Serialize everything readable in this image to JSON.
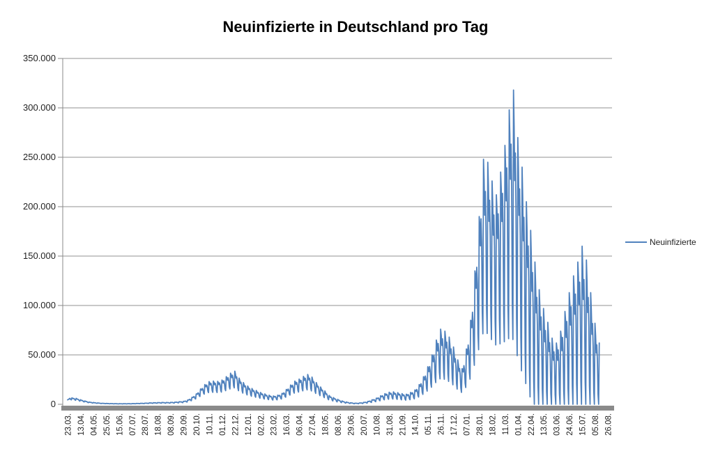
{
  "chart_data": {
    "type": "line",
    "title": "Neuinfizierte in Deutschland pro Tag",
    "legend": {
      "label": "Neuinfizierte",
      "position": "right"
    },
    "grid": "on",
    "line_color": "#4F81BD",
    "grid_color": "#909090",
    "axis_color": "#8a8a8a",
    "axis_bar_color": "#8a8a8a",
    "text_color": "#1f1f1f",
    "ylim": [
      0,
      350000
    ],
    "y_tick_step": 50000,
    "y_tick_labels": [
      "0",
      "50.000",
      "100.000",
      "150.000",
      "200.000",
      "250.000",
      "300.000",
      "350.000"
    ],
    "x_tick_labels": [
      "23.03.",
      "13.04.",
      "04.05.",
      "25.05.",
      "15.06.",
      "07.07.",
      "28.07.",
      "18.08.",
      "08.09.",
      "29.09.",
      "20.10.",
      "10.11.",
      "01.12.",
      "22.12.",
      "12.01.",
      "02.02.",
      "23.02.",
      "16.03.",
      "06.04.",
      "27.04.",
      "18.05.",
      "08.06.",
      "29.06.",
      "20.07.",
      "10.08.",
      "31.08.",
      "21.09.",
      "14.10.",
      "05.11.",
      "26.11.",
      "17.12.",
      "07.01.",
      "28.01.",
      "18.02.",
      "11.03.",
      "01.04.",
      "22.04.",
      "13.05.",
      "03.06.",
      "24.06.",
      "15.07.",
      "05.08.",
      "26.08."
    ],
    "x_tick_interval_days": 21,
    "last_day_index": 868,
    "synthesis_note": "Daily values estimated from pixels: value(d) = envelope(d) * (1 - dip(d) * weekday_dip_shape[d mod 7]); envelope/dip linearly interpolated between keypoints [day_index, value].",
    "series": [
      {
        "name": "Neuinfizierte",
        "color": "#4F81BD",
        "weekday_dip_shape": [
          0,
          0.12,
          0.32,
          0.18,
          0.38,
          0.85,
          1.0
        ],
        "weekly_dip_keypoints": [
          [
            0,
            0.32
          ],
          [
            120,
            0.38
          ],
          [
            196,
            0.45
          ],
          [
            260,
            0.5
          ],
          [
            340,
            0.5
          ],
          [
            420,
            0.52
          ],
          [
            540,
            0.58
          ],
          [
            600,
            0.65
          ],
          [
            650,
            0.68
          ],
          [
            700,
            0.72
          ],
          [
            730,
            0.8
          ],
          [
            748,
            0.9
          ],
          [
            760,
            1.0
          ],
          [
            868,
            1.0
          ]
        ],
        "envelope_keypoints": [
          [
            0,
            4500
          ],
          [
            4,
            6800
          ],
          [
            7,
            6500
          ],
          [
            14,
            6000
          ],
          [
            21,
            4600
          ],
          [
            28,
            3400
          ],
          [
            35,
            2300
          ],
          [
            42,
            1800
          ],
          [
            49,
            1400
          ],
          [
            56,
            1050
          ],
          [
            63,
            900
          ],
          [
            70,
            750
          ],
          [
            77,
            650
          ],
          [
            84,
            580
          ],
          [
            91,
            600
          ],
          [
            98,
            620
          ],
          [
            105,
            680
          ],
          [
            112,
            850
          ],
          [
            119,
            1000
          ],
          [
            126,
            1150
          ],
          [
            133,
            1400
          ],
          [
            140,
            1600
          ],
          [
            147,
            1750
          ],
          [
            154,
            1900
          ],
          [
            161,
            1850
          ],
          [
            168,
            1950
          ],
          [
            175,
            2200
          ],
          [
            182,
            2600
          ],
          [
            189,
            3000
          ],
          [
            196,
            4300
          ],
          [
            203,
            7000
          ],
          [
            210,
            10500
          ],
          [
            217,
            15500
          ],
          [
            224,
            20000
          ],
          [
            231,
            23000
          ],
          [
            238,
            23500
          ],
          [
            245,
            23200
          ],
          [
            252,
            24500
          ],
          [
            259,
            28000
          ],
          [
            266,
            31500
          ],
          [
            273,
            33500
          ],
          [
            280,
            26500
          ],
          [
            287,
            22000
          ],
          [
            294,
            18500
          ],
          [
            301,
            16000
          ],
          [
            308,
            14000
          ],
          [
            315,
            12000
          ],
          [
            322,
            10500
          ],
          [
            329,
            9200
          ],
          [
            336,
            8400
          ],
          [
            343,
            9200
          ],
          [
            350,
            11000
          ],
          [
            357,
            15000
          ],
          [
            364,
            19500
          ],
          [
            371,
            23500
          ],
          [
            378,
            25500
          ],
          [
            385,
            28200
          ],
          [
            392,
            30200
          ],
          [
            399,
            27500
          ],
          [
            406,
            22000
          ],
          [
            413,
            17500
          ],
          [
            420,
            13500
          ],
          [
            427,
            9000
          ],
          [
            434,
            6800
          ],
          [
            441,
            5000
          ],
          [
            448,
            3400
          ],
          [
            455,
            2300
          ],
          [
            462,
            1600
          ],
          [
            469,
            1150
          ],
          [
            476,
            1300
          ],
          [
            483,
            1900
          ],
          [
            490,
            2900
          ],
          [
            497,
            4600
          ],
          [
            504,
            6200
          ],
          [
            511,
            8600
          ],
          [
            518,
            10800
          ],
          [
            525,
            12200
          ],
          [
            532,
            12600
          ],
          [
            539,
            11800
          ],
          [
            546,
            10800
          ],
          [
            553,
            10200
          ],
          [
            560,
            12000
          ],
          [
            567,
            14500
          ],
          [
            574,
            20000
          ],
          [
            581,
            28000
          ],
          [
            588,
            38000
          ],
          [
            595,
            50000
          ],
          [
            602,
            65000
          ],
          [
            609,
            76000
          ],
          [
            616,
            74000
          ],
          [
            623,
            68000
          ],
          [
            630,
            58000
          ],
          [
            637,
            45000
          ],
          [
            644,
            36000
          ],
          [
            651,
            56000
          ],
          [
            658,
            85000
          ],
          [
            665,
            135000
          ],
          [
            672,
            190000
          ],
          [
            679,
            248000
          ],
          [
            686,
            245000
          ],
          [
            693,
            226000
          ],
          [
            700,
            212000
          ],
          [
            707,
            235000
          ],
          [
            714,
            262000
          ],
          [
            721,
            298000
          ],
          [
            728,
            318000
          ],
          [
            735,
            270000
          ],
          [
            742,
            240000
          ],
          [
            749,
            205000
          ],
          [
            756,
            176000
          ],
          [
            763,
            144000
          ],
          [
            770,
            116000
          ],
          [
            777,
            97000
          ],
          [
            784,
            83000
          ],
          [
            791,
            67000
          ],
          [
            798,
            62000
          ],
          [
            805,
            74000
          ],
          [
            812,
            94000
          ],
          [
            819,
            113000
          ],
          [
            826,
            130000
          ],
          [
            833,
            144000
          ],
          [
            840,
            160000
          ],
          [
            847,
            146000
          ],
          [
            854,
            113000
          ],
          [
            861,
            82000
          ],
          [
            868,
            62000
          ]
        ]
      }
    ]
  }
}
